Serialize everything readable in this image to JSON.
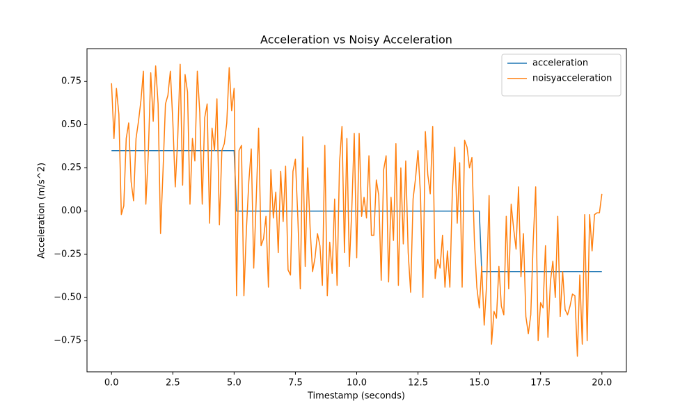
{
  "chart_data": {
    "type": "line",
    "title": "Acceleration vs Noisy Acceleration",
    "x_label": "Timestamp (seconds)",
    "y_label": "Acceleration (m/s^2)",
    "x": [
      0,
      0.1,
      0.2,
      0.3,
      0.4,
      0.5,
      0.6,
      0.7,
      0.8,
      0.9,
      1,
      1.1,
      1.2,
      1.3,
      1.4,
      1.5,
      1.6,
      1.7,
      1.8,
      1.9,
      2,
      2.1,
      2.2,
      2.3,
      2.4,
      2.5,
      2.6,
      2.7,
      2.8,
      2.9,
      3,
      3.1,
      3.2,
      3.3,
      3.4,
      3.5,
      3.6,
      3.7,
      3.8,
      3.9,
      4,
      4.1,
      4.2,
      4.3,
      4.4,
      4.5,
      4.6,
      4.7,
      4.8,
      4.9,
      5,
      5.1,
      5.2,
      5.3,
      5.4,
      5.5,
      5.6,
      5.7,
      5.8,
      5.9,
      6,
      6.1,
      6.2,
      6.3,
      6.4,
      6.5,
      6.6,
      6.7,
      6.8,
      6.9,
      7,
      7.1,
      7.2,
      7.3,
      7.4,
      7.5,
      7.6,
      7.7,
      7.8,
      7.9,
      8,
      8.1,
      8.2,
      8.3,
      8.4,
      8.5,
      8.6,
      8.7,
      8.8,
      8.9,
      9,
      9.1,
      9.2,
      9.3,
      9.4,
      9.5,
      9.6,
      9.7,
      9.8,
      9.9,
      10,
      10.1,
      10.2,
      10.3,
      10.4,
      10.5,
      10.6,
      10.7,
      10.8,
      10.9,
      11,
      11.1,
      11.2,
      11.3,
      11.4,
      11.5,
      11.6,
      11.7,
      11.8,
      11.9,
      12,
      12.1,
      12.2,
      12.3,
      12.4,
      12.5,
      12.6,
      12.7,
      12.8,
      12.9,
      13,
      13.1,
      13.2,
      13.3,
      13.4,
      13.5,
      13.6,
      13.7,
      13.8,
      13.9,
      14,
      14.1,
      14.2,
      14.3,
      14.4,
      14.5,
      14.6,
      14.7,
      14.8,
      14.9,
      15,
      15.1,
      15.2,
      15.3,
      15.4,
      15.5,
      15.6,
      15.7,
      15.8,
      15.9,
      16,
      16.1,
      16.2,
      16.3,
      16.4,
      16.5,
      16.6,
      16.7,
      16.8,
      16.9,
      17,
      17.1,
      17.2,
      17.3,
      17.4,
      17.5,
      17.6,
      17.7,
      17.8,
      17.9,
      18,
      18.1,
      18.2,
      18.3,
      18.4,
      18.5,
      18.6,
      18.7,
      18.8,
      18.9,
      19,
      19.1,
      19.2,
      19.3,
      19.4,
      19.5,
      19.6,
      19.7,
      19.8,
      19.9,
      20
    ],
    "series": [
      {
        "name": "acceleration",
        "color": "#1f77b4",
        "values": [
          0.35,
          0.35,
          0.35,
          0.35,
          0.35,
          0.35,
          0.35,
          0.35,
          0.35,
          0.35,
          0.35,
          0.35,
          0.35,
          0.35,
          0.35,
          0.35,
          0.35,
          0.35,
          0.35,
          0.35,
          0.35,
          0.35,
          0.35,
          0.35,
          0.35,
          0.35,
          0.35,
          0.35,
          0.35,
          0.35,
          0.35,
          0.35,
          0.35,
          0.35,
          0.35,
          0.35,
          0.35,
          0.35,
          0.35,
          0.35,
          0.35,
          0.35,
          0.35,
          0.35,
          0.35,
          0.35,
          0.35,
          0.35,
          0.35,
          0.35,
          0.35,
          0,
          0,
          0,
          0,
          0,
          0,
          0,
          0,
          0,
          0,
          0,
          0,
          0,
          0,
          0,
          0,
          0,
          0,
          0,
          0,
          0,
          0,
          0,
          0,
          0,
          0,
          0,
          0,
          0,
          0,
          0,
          0,
          0,
          0,
          0,
          0,
          0,
          0,
          0,
          0,
          0,
          0,
          0,
          0,
          0,
          0,
          0,
          0,
          0,
          0,
          0,
          0,
          0,
          0,
          0,
          0,
          0,
          0,
          0,
          0,
          0,
          0,
          0,
          0,
          0,
          0,
          0,
          0,
          0,
          0,
          0,
          0,
          0,
          0,
          0,
          0,
          0,
          0,
          0,
          0,
          0,
          0,
          0,
          0,
          0,
          0,
          0,
          0,
          0,
          0,
          0,
          0,
          0,
          0,
          0,
          0,
          0,
          0,
          0,
          0,
          -0.35,
          -0.35,
          -0.35,
          -0.35,
          -0.35,
          -0.35,
          -0.35,
          -0.35,
          -0.35,
          -0.35,
          -0.35,
          -0.35,
          -0.35,
          -0.35,
          -0.35,
          -0.35,
          -0.35,
          -0.35,
          -0.35,
          -0.35,
          -0.35,
          -0.35,
          -0.35,
          -0.35,
          -0.35,
          -0.35,
          -0.35,
          -0.35,
          -0.35,
          -0.35,
          -0.35,
          -0.35,
          -0.35,
          -0.35,
          -0.35,
          -0.35,
          -0.35,
          -0.35,
          -0.35,
          -0.35,
          -0.35,
          -0.35,
          -0.35,
          -0.35,
          -0.35,
          -0.35,
          -0.35,
          -0.35,
          -0.35,
          -0.35
        ]
      },
      {
        "name": "noisyacceleration",
        "color": "#ff7f0e",
        "values": [
          0.74,
          0.42,
          0.71,
          0.56,
          -0.02,
          0.03,
          0.42,
          0.51,
          0.17,
          0.06,
          0.42,
          0.52,
          0.64,
          0.81,
          0.04,
          0.33,
          0.8,
          0.52,
          0.84,
          0.62,
          -0.13,
          0.23,
          0.62,
          0.67,
          0.81,
          0.52,
          0.14,
          0.42,
          0.85,
          0.15,
          0.79,
          0.69,
          0.04,
          0.42,
          0.29,
          0.81,
          0.57,
          0.04,
          0.54,
          0.62,
          -0.07,
          0.48,
          0.35,
          0.65,
          -0.08,
          0.35,
          0.39,
          0.51,
          0.83,
          0.58,
          0.71,
          -0.49,
          0.35,
          0.38,
          -0.49,
          -0.11,
          0.17,
          0.36,
          -0.33,
          0.06,
          0.48,
          -0.2,
          -0.16,
          -0.03,
          -0.44,
          0.24,
          -0.04,
          0.11,
          -0.24,
          0.23,
          -0.06,
          0.26,
          -0.34,
          -0.37,
          0.23,
          0.3,
          -0.04,
          -0.45,
          0.43,
          -0.32,
          0.25,
          -0.1,
          -0.35,
          -0.27,
          -0.13,
          -0.2,
          -0.43,
          0.38,
          -0.49,
          -0.18,
          -0.36,
          0.07,
          -0.43,
          0.28,
          0.49,
          -0.24,
          0.42,
          -0.32,
          0.01,
          0.45,
          -0.27,
          0.45,
          -0.03,
          0.08,
          -0.04,
          0.32,
          -0.14,
          -0.14,
          0.18,
          0.09,
          -0.4,
          0.24,
          0.32,
          -0.41,
          0.08,
          -0.17,
          0.39,
          -0.43,
          0.25,
          -0.19,
          0.29,
          -0.24,
          -0.47,
          0.07,
          0.19,
          0.35,
          0.1,
          -0.5,
          0.46,
          0.21,
          0.1,
          0.49,
          -0.39,
          -0.28,
          -0.33,
          -0.14,
          -0.44,
          -0.23,
          -0.44,
          0.11,
          0.37,
          -0.07,
          0.28,
          -0.44,
          0.41,
          0.37,
          0.25,
          0.31,
          -0.17,
          -0.44,
          -0.56,
          -0.32,
          -0.66,
          -0.42,
          0.09,
          -0.77,
          -0.58,
          -0.62,
          -0.32,
          -0.55,
          -0.6,
          -0.03,
          -0.45,
          0.04,
          -0.1,
          -0.22,
          0.14,
          -0.38,
          -0.13,
          -0.61,
          -0.71,
          -0.6,
          -0.17,
          0.14,
          -0.75,
          -0.53,
          -0.56,
          -0.2,
          -0.73,
          -0.41,
          -0.29,
          -0.5,
          -0.03,
          -0.61,
          -0.35,
          -0.57,
          -0.6,
          -0.55,
          -0.48,
          -0.49,
          -0.84,
          -0.37,
          -0.77,
          -0.02,
          -0.75,
          -0.02,
          -0.23,
          -0.02,
          -0.01,
          -0.01,
          0.1
        ]
      }
    ],
    "xlim": [
      -1,
      21
    ],
    "ylim": [
      -0.93,
      0.94
    ],
    "xticks": [
      {
        "value": 0,
        "label": "0.0"
      },
      2.5,
      {
        "value": 5,
        "label": "5.0"
      },
      7.5,
      {
        "value": 10,
        "label": "10.0"
      },
      12.5,
      {
        "value": 15,
        "label": "15.0"
      },
      17.5,
      {
        "value": 20,
        "label": "20.0"
      }
    ],
    "yticks": [
      {
        "value": -0.75,
        "label": "−0.75"
      },
      {
        "value": -0.5,
        "label": "−0.50"
      },
      {
        "value": -0.25,
        "label": "−0.25"
      },
      {
        "value": 0,
        "label": "0.00"
      },
      0.25,
      {
        "value": 0.5,
        "label": "0.50"
      },
      0.75
    ],
    "grid": false,
    "legend": "upper right"
  }
}
